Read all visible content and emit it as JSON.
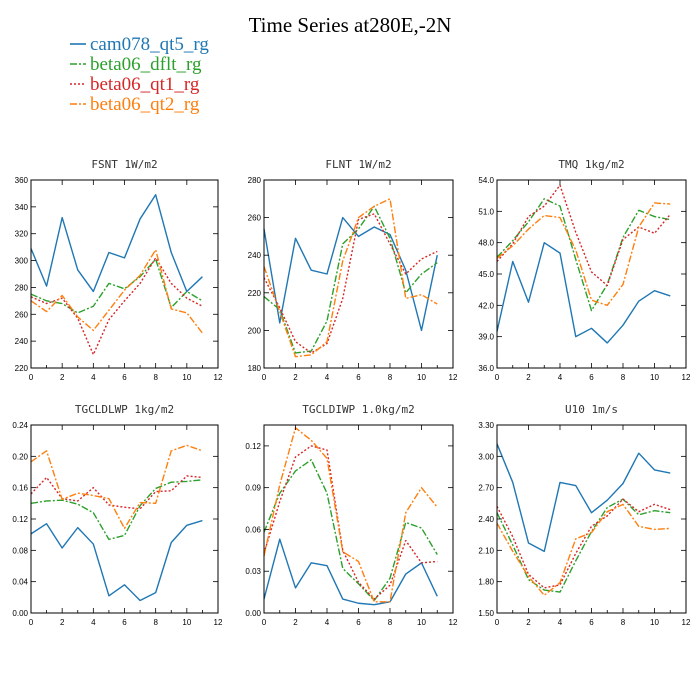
{
  "title": "Time Series at280E,-2N",
  "legend": [
    {
      "name": "cam078_qt5_rg",
      "color": "#1f77b4",
      "dash": "solid"
    },
    {
      "name": "beta06_dflt_rg",
      "color": "#2ca02c",
      "dash": "dashdot"
    },
    {
      "name": "beta06_qt1_rg",
      "color": "#d62728",
      "dash": "dot"
    },
    {
      "name": "beta06_qt2_rg",
      "color": "#ff7f0e",
      "dash": "dashdot"
    }
  ],
  "chart_data": [
    {
      "type": "line",
      "title": "FSNT   1W/m2",
      "x": [
        0,
        1,
        2,
        3,
        4,
        5,
        6,
        7,
        8,
        9,
        10,
        11
      ],
      "xlim": [
        0,
        12
      ],
      "xticks": [
        "0",
        "2",
        "4",
        "6",
        "8",
        "10",
        "12"
      ],
      "ylim": [
        220,
        360
      ],
      "yticks": [
        "220",
        "240",
        "260",
        "280",
        "300",
        "320",
        "340",
        "360"
      ],
      "series": [
        {
          "name": "cam078_qt5_rg",
          "values": [
            309,
            281,
            332,
            293,
            277,
            306,
            302,
            331,
            349,
            306,
            277,
            288
          ]
        },
        {
          "name": "beta06_dflt_rg",
          "values": [
            275,
            270,
            268,
            261,
            266,
            283,
            279,
            288,
            301,
            265,
            277,
            270
          ]
        },
        {
          "name": "beta06_qt1_rg",
          "values": [
            273,
            268,
            272,
            257,
            230,
            256,
            270,
            283,
            302,
            283,
            272,
            266
          ]
        },
        {
          "name": "beta06_qt2_rg",
          "values": [
            270,
            262,
            274,
            258,
            248,
            263,
            278,
            289,
            308,
            264,
            261,
            246
          ]
        }
      ]
    },
    {
      "type": "line",
      "title": "FLNT   1W/m2",
      "x": [
        0,
        1,
        2,
        3,
        4,
        5,
        6,
        7,
        8,
        9,
        10,
        11
      ],
      "xlim": [
        0,
        12
      ],
      "xticks": [
        "0",
        "2",
        "4",
        "6",
        "8",
        "10",
        "12"
      ],
      "ylim": [
        180,
        280
      ],
      "yticks": [
        "180",
        "200",
        "220",
        "240",
        "260",
        "280"
      ],
      "series": [
        {
          "name": "cam078_qt5_rg",
          "values": [
            254,
            204,
            249,
            232,
            230,
            260,
            250,
            255,
            251,
            232,
            200,
            240
          ]
        },
        {
          "name": "beta06_dflt_rg",
          "values": [
            218,
            211,
            188,
            189,
            205,
            246,
            254,
            266,
            249,
            220,
            230,
            236
          ]
        },
        {
          "name": "beta06_qt1_rg",
          "values": [
            228,
            212,
            194,
            188,
            193,
            217,
            259,
            262,
            246,
            230,
            238,
            242
          ]
        },
        {
          "name": "beta06_qt2_rg",
          "values": [
            234,
            210,
            186,
            187,
            194,
            237,
            260,
            266,
            270,
            217,
            219,
            214
          ]
        }
      ]
    },
    {
      "type": "line",
      "title": "TMQ   1kg/m2",
      "x": [
        0,
        1,
        2,
        3,
        4,
        5,
        6,
        7,
        8,
        9,
        10,
        11
      ],
      "xlim": [
        0,
        12
      ],
      "xticks": [
        "0",
        "2",
        "4",
        "6",
        "8",
        "10",
        "12"
      ],
      "ylim": [
        36.0,
        54.0
      ],
      "yticks": [
        "36.0",
        "39.0",
        "42.0",
        "45.0",
        "48.0",
        "51.0",
        "54.0"
      ],
      "series": [
        {
          "name": "cam078_qt5_rg",
          "values": [
            39.5,
            46.2,
            42.3,
            48.0,
            47.0,
            39.0,
            39.8,
            38.4,
            40.1,
            42.4,
            43.4,
            42.9
          ]
        },
        {
          "name": "beta06_dflt_rg",
          "values": [
            46.6,
            48.2,
            50.0,
            52.2,
            51.5,
            46.4,
            41.5,
            44.0,
            48.5,
            51.1,
            50.5,
            50.2
          ]
        },
        {
          "name": "beta06_qt1_rg",
          "values": [
            46.2,
            47.9,
            50.5,
            51.5,
            53.5,
            49.0,
            45.2,
            43.9,
            48.3,
            49.5,
            48.9,
            50.7
          ]
        },
        {
          "name": "beta06_qt2_rg",
          "values": [
            46.5,
            47.7,
            49.3,
            50.6,
            50.4,
            47.3,
            42.5,
            42.0,
            44.0,
            49.5,
            51.8,
            51.7
          ]
        }
      ]
    },
    {
      "type": "line",
      "title": "TGCLDLWP   1kg/m2",
      "x": [
        0,
        1,
        2,
        3,
        4,
        5,
        6,
        7,
        8,
        9,
        10,
        11
      ],
      "xlim": [
        0,
        12
      ],
      "xticks": [
        "0",
        "2",
        "4",
        "6",
        "8",
        "10",
        "12"
      ],
      "ylim": [
        0.0,
        0.24
      ],
      "yticks": [
        "0.00",
        "0.04",
        "0.08",
        "0.12",
        "0.16",
        "0.20",
        "0.24"
      ],
      "series": [
        {
          "name": "cam078_qt5_rg",
          "values": [
            0.101,
            0.114,
            0.083,
            0.109,
            0.088,
            0.022,
            0.036,
            0.016,
            0.026,
            0.09,
            0.112,
            0.118
          ]
        },
        {
          "name": "beta06_dflt_rg",
          "values": [
            0.14,
            0.143,
            0.144,
            0.139,
            0.128,
            0.094,
            0.099,
            0.137,
            0.159,
            0.167,
            0.168,
            0.17
          ]
        },
        {
          "name": "beta06_qt1_rg",
          "values": [
            0.152,
            0.173,
            0.146,
            0.143,
            0.16,
            0.138,
            0.135,
            0.133,
            0.155,
            0.156,
            0.175,
            0.173
          ]
        },
        {
          "name": "beta06_qt2_rg",
          "values": [
            0.193,
            0.207,
            0.145,
            0.153,
            0.15,
            0.146,
            0.108,
            0.141,
            0.14,
            0.207,
            0.214,
            0.207
          ]
        }
      ]
    },
    {
      "type": "line",
      "title": "TGCLDIWP   1.0kg/m2",
      "x": [
        0,
        1,
        2,
        3,
        4,
        5,
        6,
        7,
        8,
        9,
        10,
        11
      ],
      "xlim": [
        0,
        12
      ],
      "xticks": [
        "0",
        "2",
        "4",
        "6",
        "8",
        "10",
        "12"
      ],
      "ylim": [
        0.0,
        0.135
      ],
      "yticks": [
        "0.00",
        "0.03",
        "0.06",
        "0.09",
        "0.12"
      ],
      "series": [
        {
          "name": "cam078_qt5_rg",
          "values": [
            0.01,
            0.053,
            0.018,
            0.036,
            0.034,
            0.01,
            0.007,
            0.006,
            0.008,
            0.028,
            0.036,
            0.012
          ]
        },
        {
          "name": "beta06_dflt_rg",
          "values": [
            0.058,
            0.086,
            0.102,
            0.11,
            0.086,
            0.032,
            0.021,
            0.009,
            0.025,
            0.065,
            0.061,
            0.042
          ]
        },
        {
          "name": "beta06_qt1_rg",
          "values": [
            0.043,
            0.08,
            0.112,
            0.12,
            0.117,
            0.045,
            0.022,
            0.01,
            0.02,
            0.052,
            0.036,
            0.037
          ]
        },
        {
          "name": "beta06_qt2_rg",
          "values": [
            0.041,
            0.092,
            0.133,
            0.124,
            0.111,
            0.044,
            0.037,
            0.008,
            0.008,
            0.072,
            0.09,
            0.076
          ]
        }
      ]
    },
    {
      "type": "line",
      "title": "U10   1m/s",
      "x": [
        0,
        1,
        2,
        3,
        4,
        5,
        6,
        7,
        8,
        9,
        10,
        11
      ],
      "xlim": [
        0,
        12
      ],
      "xticks": [
        "0",
        "2",
        "4",
        "6",
        "8",
        "10",
        "12"
      ],
      "ylim": [
        1.5,
        3.3
      ],
      "yticks": [
        "1.50",
        "1.80",
        "2.10",
        "2.40",
        "2.70",
        "3.00",
        "3.30"
      ],
      "series": [
        {
          "name": "cam078_qt5_rg",
          "values": [
            3.12,
            2.75,
            2.17,
            2.09,
            2.75,
            2.72,
            2.46,
            2.58,
            2.74,
            3.03,
            2.87,
            2.84
          ]
        },
        {
          "name": "beta06_dflt_rg",
          "values": [
            2.46,
            2.15,
            1.82,
            1.72,
            1.7,
            2.0,
            2.28,
            2.51,
            2.59,
            2.44,
            2.48,
            2.46
          ]
        },
        {
          "name": "beta06_qt1_rg",
          "values": [
            2.52,
            2.23,
            1.87,
            1.74,
            1.77,
            2.07,
            2.33,
            2.43,
            2.59,
            2.47,
            2.54,
            2.49
          ]
        },
        {
          "name": "beta06_qt2_rg",
          "values": [
            2.36,
            2.09,
            1.85,
            1.67,
            1.79,
            2.21,
            2.27,
            2.47,
            2.54,
            2.33,
            2.3,
            2.31
          ]
        }
      ]
    }
  ]
}
